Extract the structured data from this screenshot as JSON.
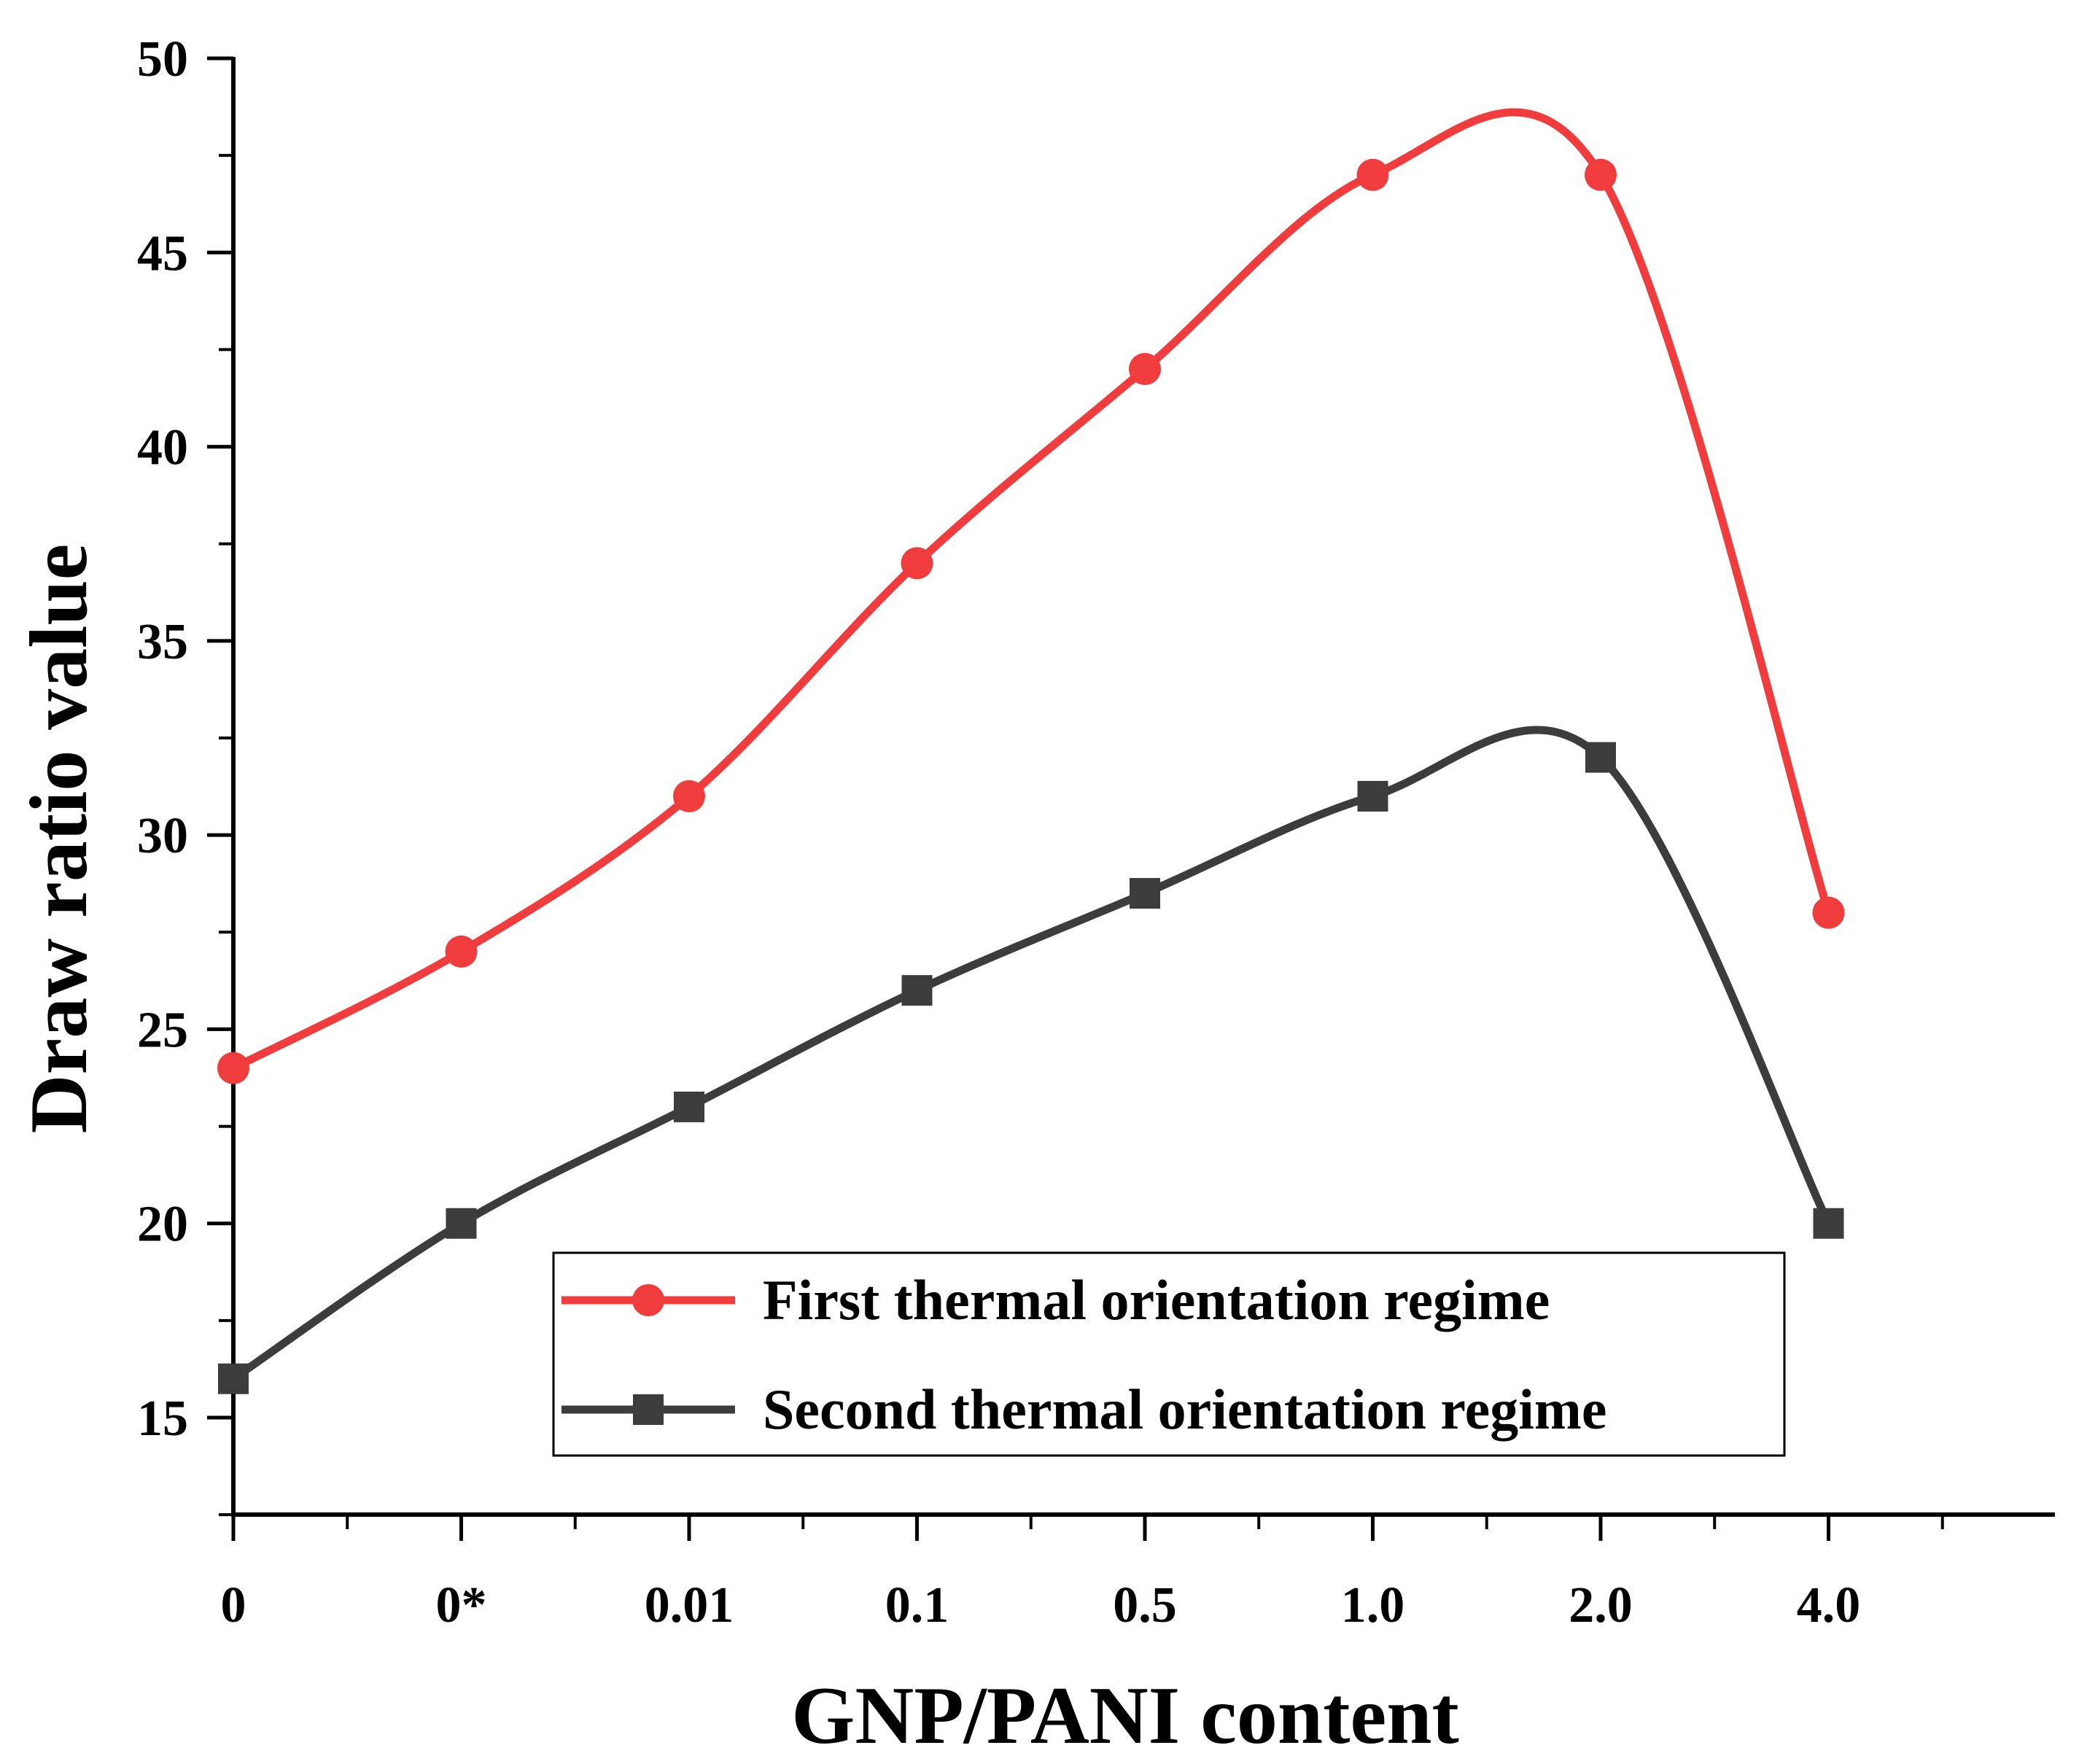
{
  "chart_data": {
    "type": "line",
    "title": "",
    "xlabel": "GNP/PANI content",
    "ylabel": "Draw ratio value",
    "categories": [
      "0",
      "0*",
      "0.01",
      "0.1",
      "0.5",
      "1.0",
      "2.0",
      "4.0"
    ],
    "ylim": [
      12.5,
      50
    ],
    "yticks": [
      15,
      20,
      25,
      30,
      35,
      40,
      45,
      50
    ],
    "legend_position": "bottom-right",
    "series": [
      {
        "name": "First thermal orientation regime",
        "values": [
          24,
          27,
          31,
          37,
          42,
          47,
          47,
          28
        ],
        "marker": "circle",
        "color": "#f03c3c"
      },
      {
        "name": "Second thermal orientation regime",
        "values": [
          16,
          20,
          23,
          26,
          28.5,
          31,
          32,
          20
        ],
        "marker": "square",
        "color": "#3c3c3c"
      }
    ]
  }
}
